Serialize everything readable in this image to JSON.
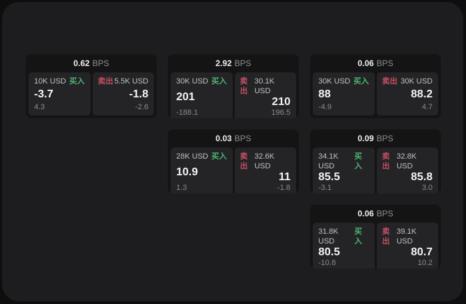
{
  "labels": {
    "bps": "BPS",
    "buy": "买入",
    "sell": "卖出"
  },
  "colors": {
    "outer_background": "#0e0e0f",
    "window_background": "#1d1d1f",
    "card_background": "#141415",
    "panel_background": "#242427",
    "buy_accent": "#4db36e",
    "sell_accent": "#c34f61"
  },
  "cards": [
    {
      "bps": "0.62",
      "buy": {
        "size": "10K USD",
        "value": "-3.7",
        "sub": "4.3"
      },
      "sell": {
        "size": "5.5K USD",
        "value": "-1.8",
        "sub": "-2.6"
      }
    },
    {
      "bps": "2.92",
      "buy": {
        "size": "30K USD",
        "value": "201",
        "sub": "-188.1"
      },
      "sell": {
        "size": "30.1K USD",
        "value": "210",
        "sub": "196.5"
      }
    },
    {
      "bps": "0.06",
      "buy": {
        "size": "30K USD",
        "value": "88",
        "sub": "-4.9"
      },
      "sell": {
        "size": "30K USD",
        "value": "88.2",
        "sub": "4.7"
      }
    },
    {
      "bps": "0.03",
      "buy": {
        "size": "28K USD",
        "value": "10.9",
        "sub": "1.3"
      },
      "sell": {
        "size": "32.6K USD",
        "value": "11",
        "sub": "-1.8"
      }
    },
    {
      "bps": "0.09",
      "buy": {
        "size": "34.1K USD",
        "value": "85.5",
        "sub": "-3.1"
      },
      "sell": {
        "size": "32.8K USD",
        "value": "85.8",
        "sub": "3.0"
      }
    },
    {
      "bps": "0.06",
      "buy": {
        "size": "31.8K USD",
        "value": "80.5",
        "sub": "-10.8"
      },
      "sell": {
        "size": "39.1K USD",
        "value": "80.7",
        "sub": "10.2"
      }
    }
  ]
}
